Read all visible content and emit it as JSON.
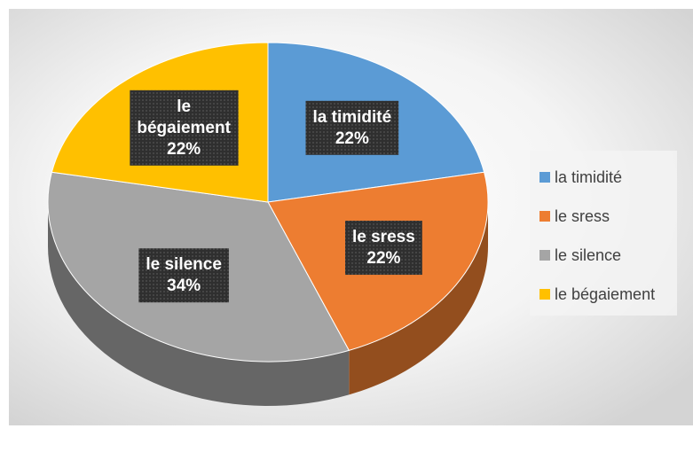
{
  "chart_data": {
    "type": "pie",
    "categories": [
      "la timidité",
      "le sress",
      "le silence",
      "le bégaiement"
    ],
    "values": [
      22,
      22,
      34,
      22
    ],
    "value_labels": [
      "22%",
      "22%",
      "34%",
      "22%"
    ],
    "colors": [
      "#5b9bd5",
      "#ed7d31",
      "#a5a5a5",
      "#ffc000"
    ],
    "legend": "right"
  }
}
